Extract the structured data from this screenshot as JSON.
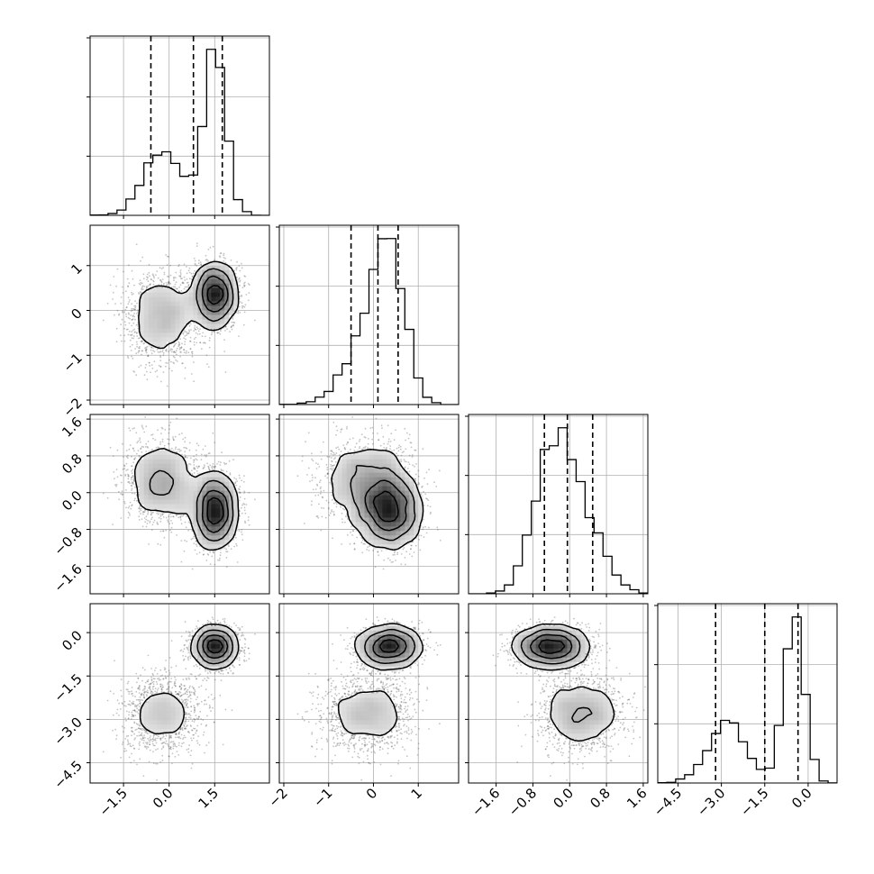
{
  "chart_data": {
    "type": "corner",
    "n_params": 4,
    "title": "",
    "axis_labels": [
      "",
      "",
      "",
      ""
    ],
    "ranges": [
      [
        -2.6,
        3.3
      ],
      [
        -2.1,
        1.9
      ],
      [
        -2.2,
        1.7
      ],
      [
        -5.2,
        1.0
      ]
    ],
    "ticks": [
      [
        -1.5,
        0.0,
        1.5
      ],
      [
        -2,
        -1,
        0,
        1
      ],
      [
        -1.6,
        -0.8,
        0.0,
        0.8,
        1.6
      ],
      [
        -4.5,
        -3.0,
        -1.5,
        0.0
      ]
    ],
    "tick_labels": [
      [
        "−1.5",
        "0.0",
        "1.5"
      ],
      [
        "−2",
        "−1",
        "0",
        "1"
      ],
      [
        "−1.6",
        "−0.8",
        "0.0",
        "0.8",
        "1.6"
      ],
      [
        "−4.5",
        "−3.0",
        "−1.5",
        "0.0"
      ]
    ],
    "grid": true,
    "quantiles": [
      [
        -0.6,
        0.8,
        1.75
      ],
      [
        -0.5,
        0.1,
        0.55
      ],
      [
        -0.55,
        -0.05,
        0.5
      ],
      [
        -3.2,
        -1.5,
        -0.35
      ]
    ],
    "components": [
      {
        "weight": 0.4,
        "mean": [
          -0.2,
          -0.15,
          0.25,
          -2.8
        ],
        "std": [
          0.6,
          0.5,
          0.45,
          0.65
        ]
      },
      {
        "weight": 0.6,
        "mean": [
          1.5,
          0.35,
          -0.4,
          -0.5
        ],
        "std": [
          0.35,
          0.35,
          0.4,
          0.35
        ]
      }
    ],
    "hist_bins": 20,
    "colors": {
      "line": "#000000",
      "points": "#555555",
      "grid": "#b0b0b0"
    }
  }
}
